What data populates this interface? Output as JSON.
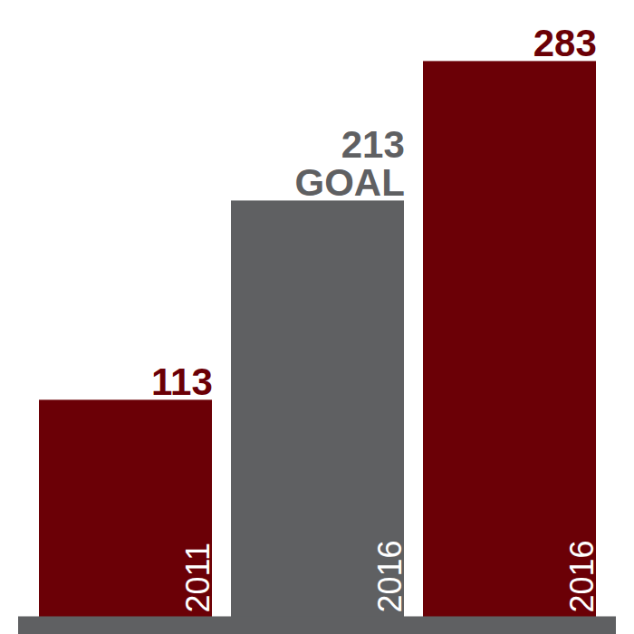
{
  "chart_data": {
    "type": "bar",
    "categories": [
      "2011",
      "2016",
      "2016"
    ],
    "values": [
      113,
      213,
      283
    ],
    "value_labels": [
      "113",
      "213\nGOAL",
      "283"
    ],
    "colors": [
      "#6b0006",
      "#5f6062",
      "#6b0006"
    ],
    "ylim": [
      0,
      300
    ],
    "yticks": [],
    "data_labels": true,
    "tick_labels": "x",
    "grid": false
  }
}
